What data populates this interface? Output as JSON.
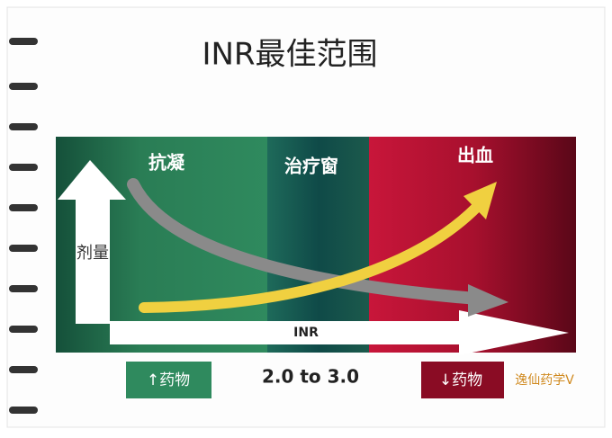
{
  "title": "INR最佳范围",
  "zones": [
    {
      "label": "抗凝"
    },
    {
      "label": "治疗窗"
    },
    {
      "label": "出血"
    }
  ],
  "y_axis_label": "剂量",
  "x_axis_label": "INR",
  "bottom": {
    "left": "↑药物",
    "center": "2.0 to 3.0",
    "right": "↓药物"
  },
  "watermark": "逸仙药学V"
}
